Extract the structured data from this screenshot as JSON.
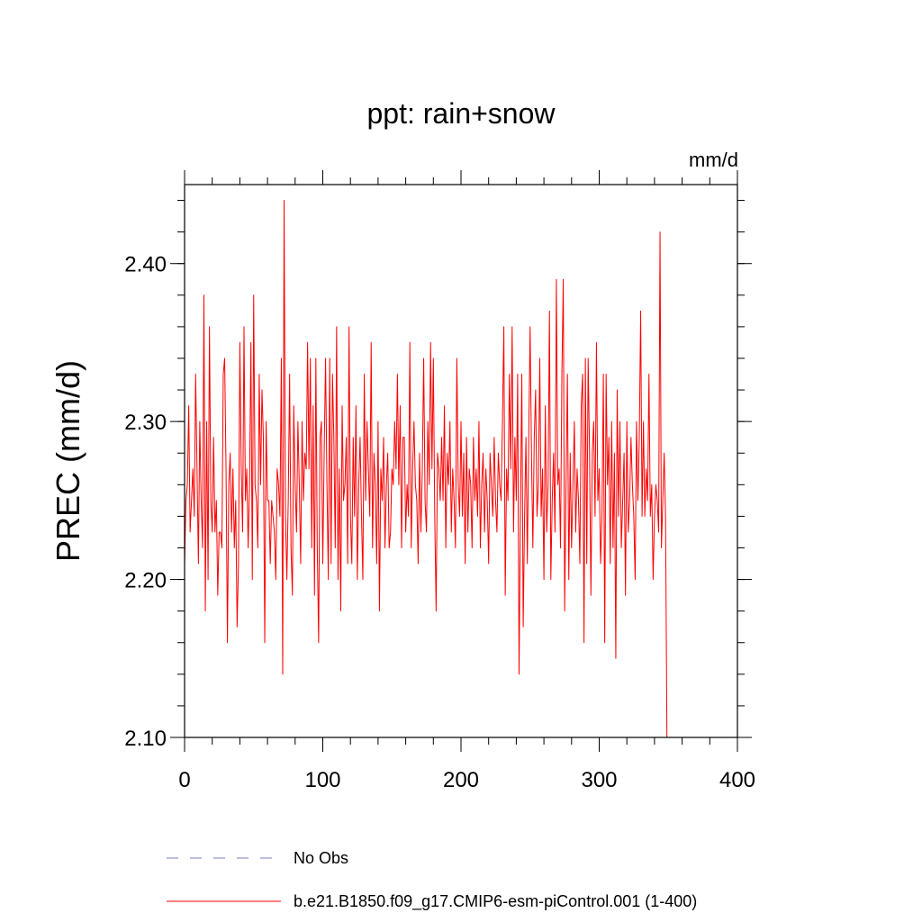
{
  "chart_data": {
    "type": "line",
    "title": "ppt: rain+snow",
    "units": "mm/d",
    "ylabel": "PREC  (mm/d)",
    "xlabel": "",
    "xlim": [
      0,
      400
    ],
    "ylim": [
      2.1,
      2.45
    ],
    "x_ticks": [
      0,
      100,
      200,
      300,
      400
    ],
    "x_tick_labels": [
      "0",
      "100",
      "200",
      "300",
      "400"
    ],
    "y_ticks": [
      2.1,
      2.2,
      2.3,
      2.4
    ],
    "y_tick_labels": [
      "2.10",
      "2.20",
      "2.30",
      "2.40"
    ],
    "x_minor_step": 20,
    "y_minor_step": 0.02,
    "grid": false,
    "legend_position": "bottom",
    "legend": [
      {
        "label": "No Obs",
        "color": "#7b7bb8",
        "style": "dashed"
      },
      {
        "label": "b.e21.B1850.f09_g17.CMIP6-esm-piControl.001 (1-400)",
        "color": "#ff0000",
        "style": "solid"
      }
    ],
    "series": [
      {
        "color": "#ff0000",
        "x_start": 0,
        "x_step": 1,
        "values": [
          2.21,
          2.25,
          2.26,
          2.31,
          2.23,
          2.25,
          2.27,
          2.24,
          2.33,
          2.27,
          2.21,
          2.3,
          2.25,
          2.22,
          2.38,
          2.18,
          2.3,
          2.2,
          2.36,
          2.25,
          2.23,
          2.29,
          2.23,
          2.25,
          2.19,
          2.23,
          2.23,
          2.22,
          2.33,
          2.34,
          2.27,
          2.16,
          2.26,
          2.28,
          2.23,
          2.27,
          2.22,
          2.25,
          2.17,
          2.21,
          2.35,
          2.27,
          2.23,
          2.36,
          2.25,
          2.27,
          2.22,
          2.26,
          2.35,
          2.2,
          2.38,
          2.26,
          2.25,
          2.22,
          2.33,
          2.26,
          2.32,
          2.29,
          2.16,
          2.3,
          2.25,
          2.25,
          2.21,
          2.25,
          2.24,
          2.23,
          2.2,
          2.27,
          2.26,
          2.24,
          2.34,
          2.14,
          2.44,
          2.24,
          2.2,
          2.25,
          2.33,
          2.22,
          2.19,
          2.31,
          2.26,
          2.23,
          2.3,
          2.26,
          2.21,
          2.3,
          2.25,
          2.28,
          2.27,
          2.35,
          2.27,
          2.34,
          2.22,
          2.31,
          2.19,
          2.34,
          2.22,
          2.16,
          2.29,
          2.3,
          2.21,
          2.28,
          2.34,
          2.26,
          2.2,
          2.34,
          2.21,
          2.33,
          2.29,
          2.22,
          2.36,
          2.2,
          2.27,
          2.18,
          2.31,
          2.25,
          2.26,
          2.29,
          2.21,
          2.36,
          2.24,
          2.21,
          2.29,
          2.24,
          2.31,
          2.2,
          2.26,
          2.29,
          2.24,
          2.2,
          2.33,
          2.25,
          2.3,
          2.27,
          2.24,
          2.35,
          2.22,
          2.28,
          2.26,
          2.21,
          2.3,
          2.18,
          2.27,
          2.25,
          2.29,
          2.22,
          2.26,
          2.28,
          2.22,
          2.23,
          2.27,
          2.26,
          2.3,
          2.27,
          2.33,
          2.26,
          2.31,
          2.22,
          2.29,
          2.29,
          2.23,
          2.26,
          2.24,
          2.35,
          2.22,
          2.27,
          2.3,
          2.26,
          2.25,
          2.21,
          2.28,
          2.23,
          2.27,
          2.34,
          2.25,
          2.23,
          2.3,
          2.26,
          2.35,
          2.27,
          2.34,
          2.24,
          2.18,
          2.28,
          2.27,
          2.25,
          2.29,
          2.25,
          2.31,
          2.22,
          2.28,
          2.26,
          2.3,
          2.23,
          2.27,
          2.25,
          2.22,
          2.34,
          2.26,
          2.24,
          2.3,
          2.24,
          2.28,
          2.21,
          2.29,
          2.23,
          2.27,
          2.26,
          2.22,
          2.29,
          2.25,
          2.27,
          2.24,
          2.3,
          2.22,
          2.26,
          2.28,
          2.23,
          2.27,
          2.25,
          2.21,
          2.28,
          2.26,
          2.24,
          2.29,
          2.25,
          2.23,
          2.28,
          2.26,
          2.25,
          2.3,
          2.36,
          2.19,
          2.27,
          2.25,
          2.33,
          2.27,
          2.36,
          2.23,
          2.29,
          2.25,
          2.33,
          2.14,
          2.24,
          2.33,
          2.17,
          2.24,
          2.29,
          2.21,
          2.29,
          2.36,
          2.28,
          2.22,
          2.29,
          2.32,
          2.24,
          2.26,
          2.34,
          2.24,
          2.27,
          2.2,
          2.31,
          2.23,
          2.26,
          2.37,
          2.2,
          2.25,
          2.28,
          2.23,
          2.39,
          2.26,
          2.27,
          2.22,
          2.33,
          2.39,
          2.18,
          2.26,
          2.33,
          2.2,
          2.28,
          2.22,
          2.26,
          2.3,
          2.23,
          2.27,
          2.25,
          2.21,
          2.31,
          2.33,
          2.16,
          2.34,
          2.21,
          2.34,
          2.28,
          2.19,
          2.28,
          2.3,
          2.24,
          2.35,
          2.25,
          2.27,
          2.21,
          2.24,
          2.33,
          2.16,
          2.33,
          2.26,
          2.29,
          2.21,
          2.3,
          2.22,
          2.28,
          2.15,
          2.32,
          2.24,
          2.3,
          2.22,
          2.25,
          2.28,
          2.19,
          2.3,
          2.23,
          2.25,
          2.29,
          2.26,
          2.24,
          2.2,
          2.3,
          2.25,
          2.29,
          2.37,
          2.24,
          2.3,
          2.24,
          2.27,
          2.25,
          2.33,
          2.24,
          2.26,
          2.2,
          2.24,
          2.26,
          2.25,
          2.23,
          2.42,
          2.22,
          2.25,
          2.28,
          2.24,
          2.1
        ]
      }
    ]
  }
}
